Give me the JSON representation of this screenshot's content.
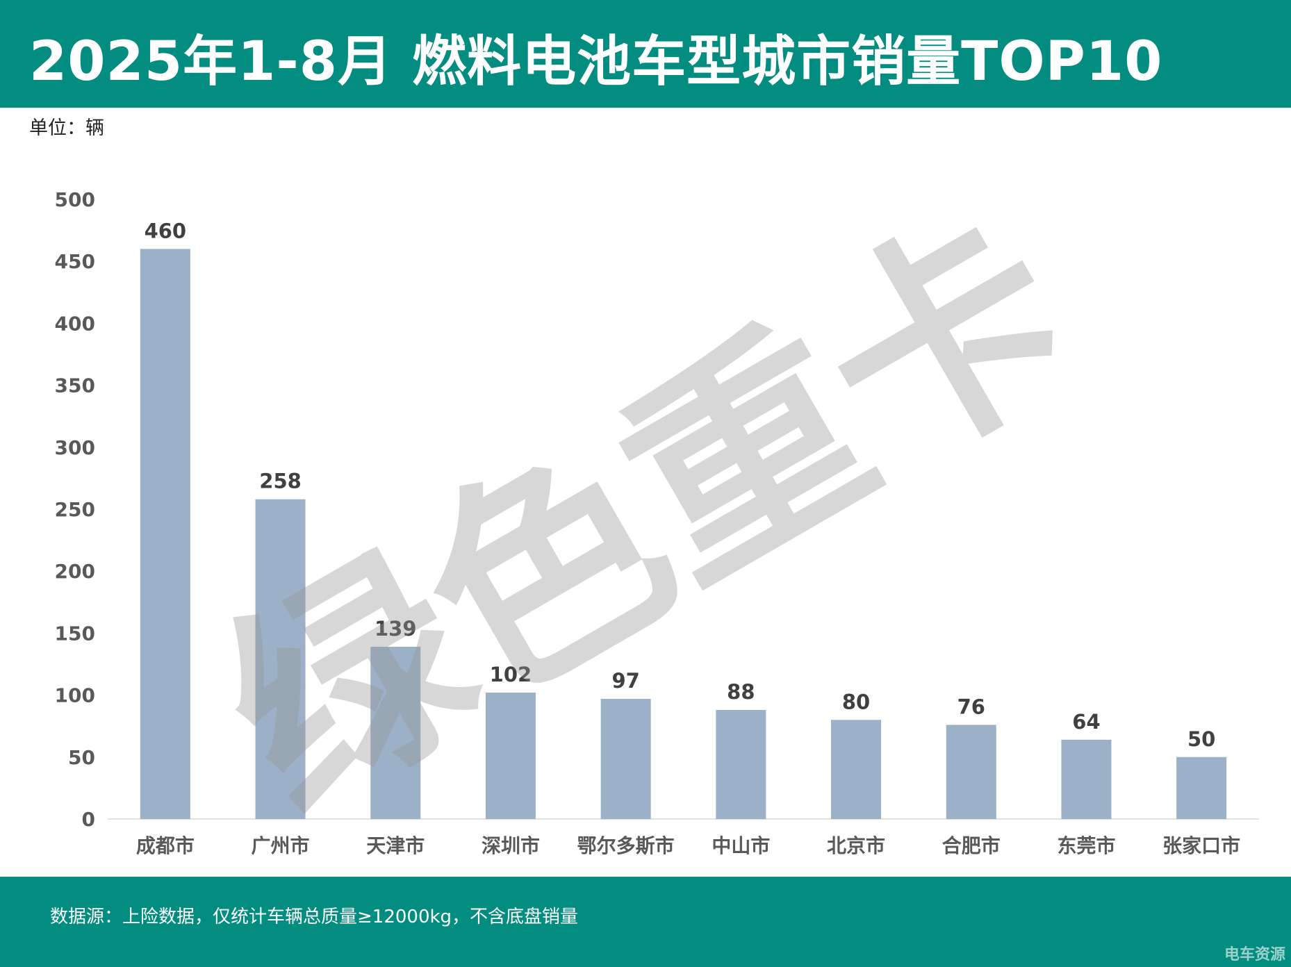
{
  "header": {
    "title": "2025年1-8月 燃料电池车型城市销量TOP10",
    "unit": "单位：辆"
  },
  "watermark": {
    "text": "绿色重卡"
  },
  "footer": {
    "source": "数据源：上险数据，仅统计车辆总质量≥12000kg，不含底盘销量",
    "brand": "电车资源"
  },
  "colors": {
    "header_bg": "#038c80",
    "bar": "#9cb0c7",
    "tick_text": "#595959",
    "label_text": "#404040"
  },
  "chart_data": {
    "type": "bar",
    "categories": [
      "成都市",
      "广州市",
      "天津市",
      "深圳市",
      "鄂尔多斯市",
      "中山市",
      "北京市",
      "合肥市",
      "东莞市",
      "张家口市"
    ],
    "values": [
      460,
      258,
      139,
      102,
      97,
      88,
      80,
      76,
      64,
      50
    ],
    "ylim": [
      0,
      500
    ],
    "yticks": [
      0,
      50,
      100,
      150,
      200,
      250,
      300,
      350,
      400,
      450,
      500
    ],
    "grid": false,
    "data_labels": true
  }
}
